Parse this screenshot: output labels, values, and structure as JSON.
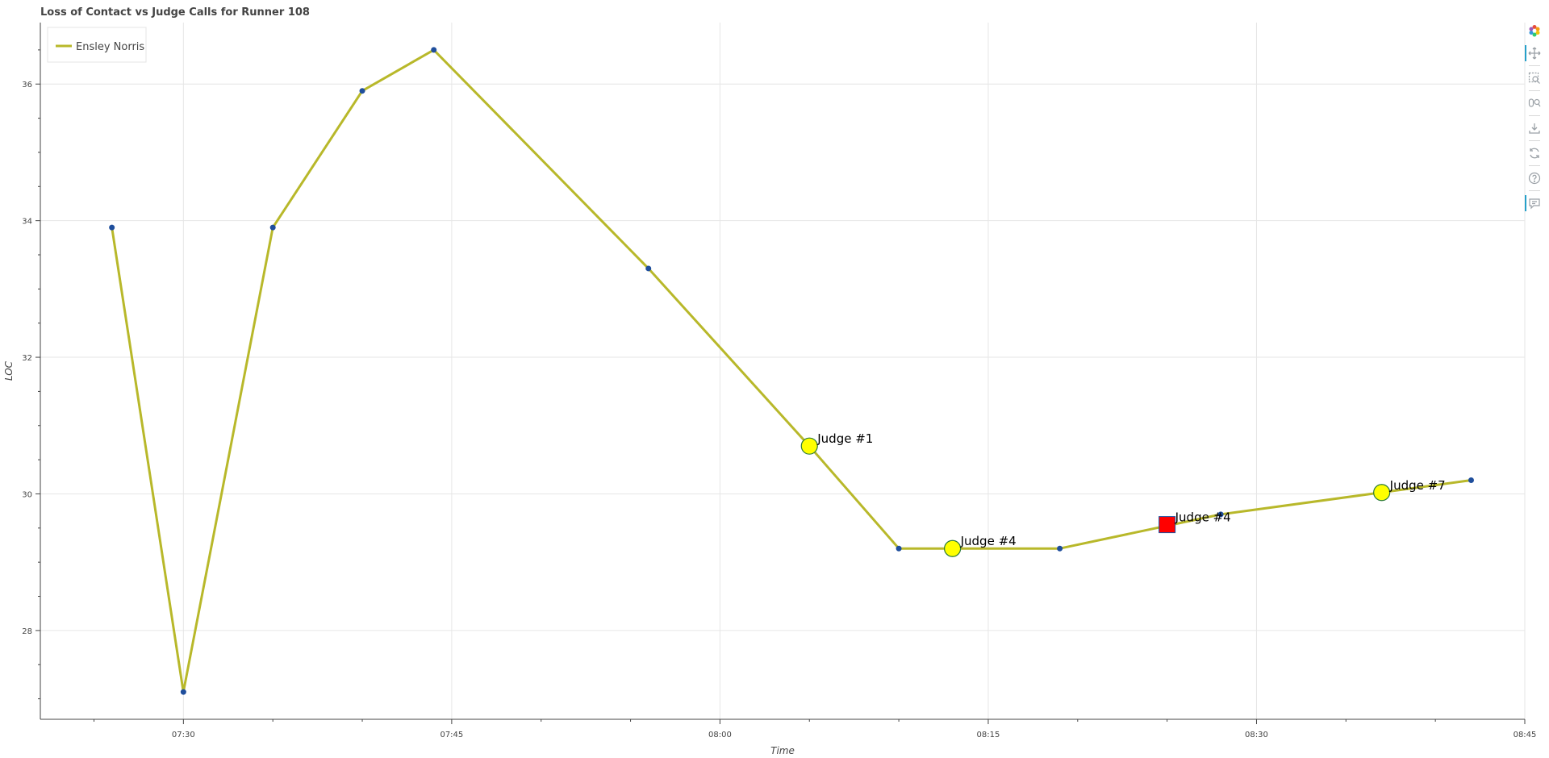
{
  "chart_data": {
    "type": "line",
    "title": "Loss of Contact vs Judge Calls for Runner 108",
    "xlabel": "Time",
    "ylabel": "LOC",
    "x_ticks": [
      "07:30",
      "07:45",
      "08:00",
      "08:15",
      "08:30",
      "08:45"
    ],
    "y_ticks": [
      "28",
      "30",
      "32",
      "34",
      "36"
    ],
    "xlim": [
      "07:22",
      "08:45"
    ],
    "ylim": [
      26.7,
      36.9
    ],
    "grid": true,
    "legend_position": "top-left",
    "series": [
      {
        "name": "Ensley Norris",
        "color": "#b8b82a",
        "point_color": "#1f4e9c",
        "points": [
          {
            "x": "07:26",
            "y": 33.9
          },
          {
            "x": "07:30",
            "y": 27.1
          },
          {
            "x": "07:35",
            "y": 33.9
          },
          {
            "x": "07:40",
            "y": 35.9
          },
          {
            "x": "07:44",
            "y": 36.5
          },
          {
            "x": "07:56",
            "y": 33.3
          },
          {
            "x": "08:05",
            "y": 30.7
          },
          {
            "x": "08:10",
            "y": 29.2
          },
          {
            "x": "08:19",
            "y": 29.2
          },
          {
            "x": "08:28",
            "y": 29.7
          },
          {
            "x": "08:42",
            "y": 30.2
          }
        ]
      }
    ],
    "judge_calls": [
      {
        "label": "Judge #1",
        "x": "08:05",
        "y": 30.7,
        "marker": "circle",
        "color": "#ffff00"
      },
      {
        "label": "Judge #4",
        "x": "08:13",
        "y": 29.2,
        "marker": "circle",
        "color": "#ffff00"
      },
      {
        "label": "Judge #4",
        "x": "08:25",
        "y": 29.55,
        "marker": "square",
        "color": "#ff0000"
      },
      {
        "label": "Judge #7",
        "x": "08:37",
        "y": 30.02,
        "marker": "circle",
        "color": "#ffff00"
      }
    ]
  },
  "toolbar": {
    "tools": [
      "bokeh-logo-icon",
      "pan-icon",
      "box-zoom-icon",
      "wheel-zoom-icon",
      "save-icon",
      "reset-icon",
      "help-icon",
      "hover-icon"
    ]
  }
}
